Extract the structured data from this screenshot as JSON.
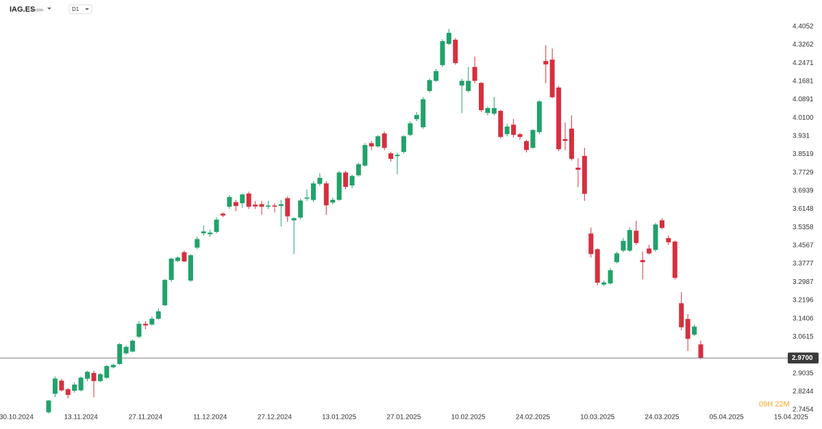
{
  "symbol": "IAG.ES",
  "instrument_type": "Acción",
  "timeframe": "D1",
  "countdown": "09H 22M",
  "chart_data": {
    "type": "candlestick",
    "colors": {
      "up": "#21a26b",
      "down": "#d72f3f",
      "price_line": "#7a7a7a"
    },
    "price_line": {
      "value": 2.97,
      "label": "2.9700"
    },
    "ylim": [
      2.71,
      4.52
    ],
    "yticks": [
      4.4052,
      4.3262,
      4.2471,
      4.1681,
      4.0891,
      {
        "value": 4.01,
        "label": "4.0100"
      },
      3.931,
      3.8519,
      3.7729,
      3.6939,
      3.6148,
      3.5358,
      3.4567,
      3.3777,
      3.2987,
      3.2196,
      3.1406,
      3.0615,
      2.9035,
      2.8244,
      2.7454
    ],
    "xlim": [
      0.5,
      120.8
    ],
    "xticks": [
      {
        "value": 0,
        "label": "30.10.2024"
      },
      {
        "value": 10,
        "label": "13.11.2024"
      },
      {
        "value": 20,
        "label": "27.11.2024"
      },
      {
        "value": 30,
        "label": "11.12.2024"
      },
      {
        "value": 40,
        "label": "27.12.2024"
      },
      {
        "value": 50,
        "label": "13.01.2025"
      },
      {
        "value": 60,
        "label": "27.01.2025"
      },
      {
        "value": 70,
        "label": "10.02.2025"
      },
      {
        "value": 80,
        "label": "24.02.2025"
      },
      {
        "value": 90,
        "label": "10.03.2025"
      },
      {
        "value": 100,
        "label": "24.03.2025"
      },
      {
        "value": 110,
        "label": "05.04.2025"
      },
      {
        "value": 120,
        "label": "15.04.2025"
      }
    ],
    "x": [
      5,
      6,
      7,
      8,
      9,
      10,
      11,
      12,
      13,
      14,
      15,
      16,
      17,
      18,
      19,
      20,
      21,
      22,
      23,
      24,
      25,
      26,
      27,
      28,
      29,
      30,
      31,
      32,
      33,
      34,
      35,
      36,
      37,
      38,
      39,
      40,
      41,
      42,
      43,
      44,
      45,
      46,
      47,
      48,
      49,
      50,
      51,
      52,
      53,
      54,
      55,
      56,
      57,
      58,
      59,
      60,
      61,
      62,
      63,
      64,
      65,
      66,
      67,
      68,
      69,
      70,
      71,
      72,
      73,
      74,
      75,
      76,
      77,
      78,
      79,
      80,
      81,
      82,
      83,
      84,
      85,
      86,
      87,
      88,
      89,
      90,
      91,
      92,
      93,
      94,
      95,
      96,
      97,
      98,
      99,
      100,
      101,
      102,
      103,
      104,
      105,
      106
    ],
    "open": [
      2.735,
      2.815,
      2.872,
      2.835,
      2.828,
      2.83,
      2.88,
      2.905,
      2.87,
      2.884,
      2.93,
      2.944,
      2.99,
      2.998,
      3.062,
      3.118,
      3.115,
      3.14,
      3.198,
      3.308,
      3.39,
      3.428,
      3.305,
      3.448,
      3.51,
      3.506,
      3.516,
      3.595,
      3.625,
      3.645,
      3.64,
      3.682,
      3.634,
      3.636,
      3.625,
      3.63,
      3.628,
      3.662,
      3.566,
      3.578,
      3.66,
      3.654,
      3.724,
      3.726,
      3.643,
      3.655,
      3.773,
      3.717,
      3.761,
      3.803,
      3.9,
      3.886,
      3.942,
      3.856,
      3.844,
      3.862,
      3.936,
      4.004,
      3.969,
      4.126,
      4.17,
      4.238,
      4.33,
      4.348,
      4.15,
      4.126,
      4.23,
      4.161,
      4.031,
      4.028,
      4.04,
      3.939,
      3.98,
      3.939,
      3.909,
      3.88,
      3.948,
      4.256,
      4.262,
      4.141,
      3.918,
      3.963,
      3.794,
      3.845,
      3.509,
      3.441,
      3.288,
      3.293,
      3.385,
      3.435,
      3.435,
      3.521,
      3.394,
      3.444,
      3.438,
      3.566,
      3.489,
      3.474,
      3.207,
      3.139,
      3.071,
      3.029
    ],
    "high": [
      2.788,
      2.89,
      2.88,
      2.84,
      2.865,
      2.89,
      2.915,
      2.915,
      2.905,
      2.94,
      2.945,
      3.035,
      3.025,
      3.05,
      3.13,
      3.13,
      3.15,
      3.185,
      3.312,
      3.405,
      3.41,
      3.435,
      3.42,
      3.495,
      3.545,
      3.525,
      3.58,
      3.6,
      3.675,
      3.655,
      3.682,
      3.69,
      3.65,
      3.65,
      3.65,
      3.64,
      3.655,
      3.67,
      3.58,
      3.66,
      3.7,
      3.735,
      3.77,
      3.735,
      3.665,
      3.78,
      3.78,
      3.765,
      3.815,
      3.9,
      3.91,
      3.935,
      3.95,
      3.862,
      3.86,
      3.935,
      3.995,
      4.035,
      4.1,
      4.18,
      4.222,
      4.35,
      4.395,
      4.355,
      4.18,
      4.23,
      4.275,
      4.165,
      4.06,
      4.1,
      4.045,
      3.985,
      4.005,
      3.945,
      3.915,
      3.962,
      4.086,
      4.325,
      4.31,
      4.148,
      3.99,
      4.02,
      3.835,
      3.88,
      3.535,
      3.445,
      3.305,
      3.36,
      3.43,
      3.49,
      3.535,
      3.565,
      3.43,
      3.46,
      3.555,
      3.575,
      3.5,
      3.478,
      3.255,
      3.16,
      3.115,
      3.045
    ],
    "low": [
      2.73,
      2.8,
      2.825,
      2.795,
      2.82,
      2.825,
      2.87,
      2.8,
      2.865,
      2.88,
      2.925,
      2.94,
      2.985,
      2.995,
      3.055,
      3.095,
      3.11,
      3.135,
      3.195,
      3.3,
      3.385,
      3.385,
      3.3,
      3.44,
      3.5,
      3.495,
      3.51,
      3.58,
      3.615,
      3.605,
      3.62,
      3.615,
      3.615,
      3.59,
      3.615,
      3.6,
      3.54,
      3.56,
      3.42,
      3.57,
      3.65,
      3.645,
      3.715,
      3.59,
      3.635,
      3.65,
      3.7,
      3.705,
      3.755,
      3.798,
      3.87,
      3.88,
      3.87,
      3.82,
      3.765,
      3.855,
      3.93,
      3.995,
      3.962,
      4.12,
      4.165,
      4.23,
      4.325,
      4.24,
      4.03,
      4.12,
      4.16,
      4.035,
      4.02,
      4.02,
      3.92,
      3.93,
      3.925,
      3.915,
      3.86,
      3.875,
      3.94,
      4.16,
      4.095,
      3.865,
      3.87,
      3.825,
      3.71,
      3.65,
      3.405,
      3.285,
      3.28,
      3.288,
      3.38,
      3.428,
      3.43,
      3.46,
      3.31,
      3.418,
      3.43,
      3.528,
      3.46,
      3.31,
      3.09,
      3.0,
      3.065,
      2.965
    ],
    "close": [
      2.786,
      2.881,
      2.83,
      2.81,
      2.855,
      2.885,
      2.91,
      2.87,
      2.9,
      2.935,
      2.94,
      3.03,
      3.018,
      3.045,
      3.118,
      3.111,
      3.14,
      3.172,
      3.308,
      3.4,
      3.405,
      3.388,
      3.415,
      3.485,
      3.518,
      3.513,
      3.569,
      3.587,
      3.667,
      3.628,
      3.678,
      3.625,
      3.626,
      3.625,
      3.63,
      3.625,
      3.636,
      3.583,
      3.575,
      3.652,
      3.665,
      3.726,
      3.75,
      3.631,
      3.655,
      3.773,
      3.711,
      3.758,
      3.809,
      3.892,
      3.886,
      3.93,
      3.88,
      3.832,
      3.85,
      3.93,
      3.986,
      4.022,
      4.09,
      4.173,
      4.212,
      4.342,
      4.378,
      4.247,
      4.17,
      4.17,
      4.17,
      4.043,
      4.052,
      4.052,
      3.927,
      3.972,
      3.936,
      3.927,
      3.871,
      3.957,
      4.081,
      4.241,
      4.099,
      3.874,
      3.91,
      3.832,
      3.785,
      3.681,
      3.42,
      3.296,
      3.297,
      3.35,
      3.423,
      3.477,
      3.524,
      3.468,
      3.385,
      3.423,
      3.548,
      3.533,
      3.471,
      3.317,
      3.103,
      3.053,
      3.106,
      2.97
    ]
  }
}
